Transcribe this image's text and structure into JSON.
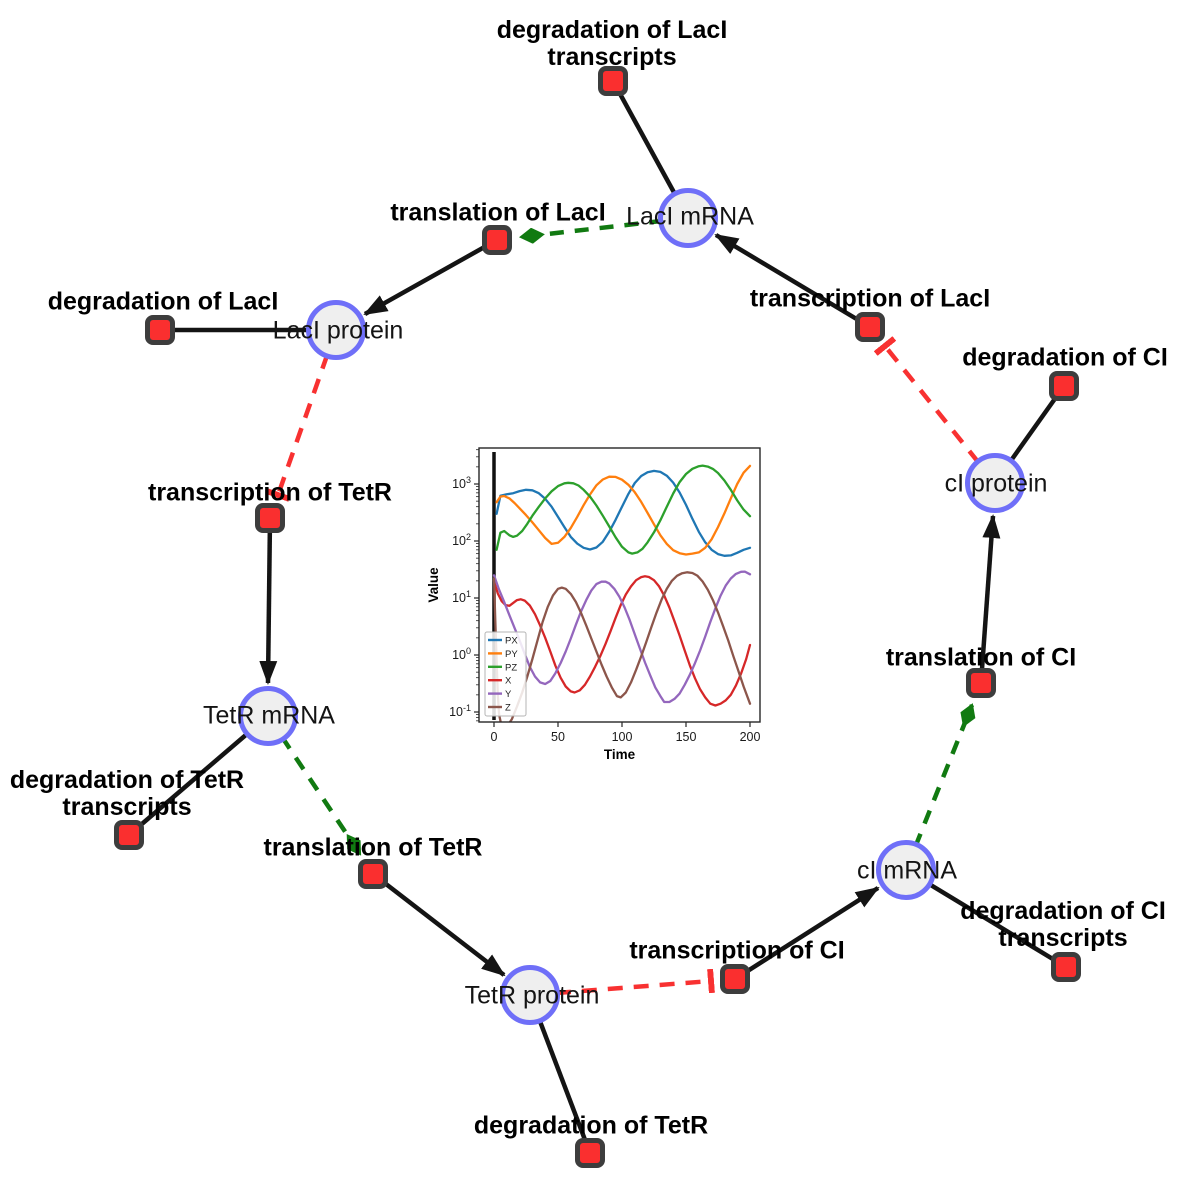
{
  "diagram": {
    "species": [
      {
        "label": "LacI mRNA"
      },
      {
        "label": "LacI protein"
      },
      {
        "label": "TetR mRNA"
      },
      {
        "label": "TetR protein"
      },
      {
        "label": "cI mRNA"
      },
      {
        "label": "cI protein"
      }
    ],
    "reactions": [
      {
        "label": "degradation of LacI transcripts"
      },
      {
        "label": "translation of LacI"
      },
      {
        "label": "degradation of LacI"
      },
      {
        "label": "transcription of LacI"
      },
      {
        "label": "degradation of CI"
      },
      {
        "label": "transcription of TetR"
      },
      {
        "label": "degradation of TetR transcripts"
      },
      {
        "label": "translation of TetR"
      },
      {
        "label": "transcription of CI"
      },
      {
        "label": "degradation of CI transcripts"
      },
      {
        "label": "translation of CI"
      },
      {
        "label": "degradation of TetR"
      }
    ],
    "colors": {
      "species_fill": "#efefef",
      "species_stroke": "#6f6ff8",
      "reaction_fill": "#fa2f2f",
      "reaction_stroke": "#3d3d3d",
      "edge_black": "#141414",
      "edge_activation_green": "#117a11",
      "edge_inhibition_red": "#f83131"
    }
  },
  "chart_data": {
    "type": "line",
    "xlabel": "Time",
    "ylabel": "Value",
    "xlim": [
      -11,
      208
    ],
    "ylim_log10": [
      -1.17,
      3.68
    ],
    "xticks": [
      0,
      50,
      100,
      150,
      200
    ],
    "ytick_exponents": [
      3,
      2,
      1,
      0,
      -1
    ],
    "grid": false,
    "legend_position": "lower left",
    "annotations": {
      "vertical_line_x": 0
    },
    "series": [
      {
        "name": "PX",
        "color": "#1f77b4",
        "points": [
          [
            2,
            300
          ],
          [
            5,
            620
          ],
          [
            10,
            660
          ],
          [
            15,
            690
          ],
          [
            20,
            750
          ],
          [
            25,
            790
          ],
          [
            30,
            775
          ],
          [
            35,
            690
          ],
          [
            40,
            550
          ],
          [
            45,
            400
          ],
          [
            50,
            265
          ],
          [
            55,
            175
          ],
          [
            60,
            118
          ],
          [
            65,
            90
          ],
          [
            70,
            76
          ],
          [
            75,
            71
          ],
          [
            80,
            77
          ],
          [
            85,
            97
          ],
          [
            90,
            145
          ],
          [
            95,
            235
          ],
          [
            100,
            400
          ],
          [
            105,
            670
          ],
          [
            110,
            1040
          ],
          [
            115,
            1380
          ],
          [
            120,
            1610
          ],
          [
            125,
            1700
          ],
          [
            130,
            1630
          ],
          [
            135,
            1400
          ],
          [
            140,
            1060
          ],
          [
            145,
            710
          ],
          [
            150,
            430
          ],
          [
            155,
            245
          ],
          [
            160,
            145
          ],
          [
            165,
            95
          ],
          [
            170,
            70
          ],
          [
            175,
            59
          ],
          [
            180,
            55
          ],
          [
            185,
            56
          ],
          [
            190,
            62
          ],
          [
            195,
            70
          ],
          [
            200,
            76
          ]
        ]
      },
      {
        "name": "PY",
        "color": "#ff7f0e",
        "points": [
          [
            2,
            480
          ],
          [
            5,
            600
          ],
          [
            8,
            615
          ],
          [
            12,
            560
          ],
          [
            16,
            465
          ],
          [
            20,
            375
          ],
          [
            25,
            285
          ],
          [
            30,
            212
          ],
          [
            35,
            155
          ],
          [
            40,
            113
          ],
          [
            45,
            89
          ],
          [
            50,
            93
          ],
          [
            55,
            118
          ],
          [
            60,
            170
          ],
          [
            65,
            265
          ],
          [
            70,
            425
          ],
          [
            75,
            655
          ],
          [
            80,
            950
          ],
          [
            85,
            1200
          ],
          [
            90,
            1345
          ],
          [
            95,
            1330
          ],
          [
            100,
            1190
          ],
          [
            105,
            970
          ],
          [
            110,
            715
          ],
          [
            115,
            485
          ],
          [
            120,
            310
          ],
          [
            125,
            196
          ],
          [
            130,
            126
          ],
          [
            135,
            89
          ],
          [
            140,
            69
          ],
          [
            145,
            61
          ],
          [
            150,
            58
          ],
          [
            155,
            60
          ],
          [
            160,
            63
          ],
          [
            165,
            76
          ],
          [
            170,
            107
          ],
          [
            175,
            175
          ],
          [
            180,
            305
          ],
          [
            185,
            560
          ],
          [
            190,
            1000
          ],
          [
            195,
            1580
          ],
          [
            200,
            2080
          ]
        ]
      },
      {
        "name": "PZ",
        "color": "#2ca02c",
        "points": [
          [
            2,
            70
          ],
          [
            5,
            140
          ],
          [
            8,
            150
          ],
          [
            12,
            126
          ],
          [
            15,
            118
          ],
          [
            18,
            124
          ],
          [
            22,
            150
          ],
          [
            26,
            200
          ],
          [
            30,
            278
          ],
          [
            35,
            398
          ],
          [
            40,
            560
          ],
          [
            45,
            745
          ],
          [
            50,
            920
          ],
          [
            55,
            1030
          ],
          [
            58,
            1050
          ],
          [
            62,
            1030
          ],
          [
            66,
            940
          ],
          [
            70,
            790
          ],
          [
            75,
            600
          ],
          [
            80,
            420
          ],
          [
            85,
            278
          ],
          [
            90,
            180
          ],
          [
            95,
            116
          ],
          [
            100,
            79
          ],
          [
            105,
            63
          ],
          [
            108,
            60
          ],
          [
            112,
            63
          ],
          [
            116,
            73
          ],
          [
            120,
            95
          ],
          [
            125,
            142
          ],
          [
            130,
            232
          ],
          [
            135,
            400
          ],
          [
            140,
            680
          ],
          [
            145,
            1080
          ],
          [
            150,
            1500
          ],
          [
            155,
            1850
          ],
          [
            160,
            2050
          ],
          [
            163,
            2100
          ],
          [
            167,
            2020
          ],
          [
            171,
            1840
          ],
          [
            175,
            1560
          ],
          [
            180,
            1150
          ],
          [
            185,
            790
          ],
          [
            190,
            515
          ],
          [
            195,
            355
          ],
          [
            200,
            272
          ]
        ]
      },
      {
        "name": "X",
        "color": "#d62728",
        "points": [
          [
            0,
            20
          ],
          [
            3,
            12
          ],
          [
            6,
            8.8
          ],
          [
            9,
            7.5
          ],
          [
            12,
            7.3
          ],
          [
            15,
            8.2
          ],
          [
            18,
            9.2
          ],
          [
            21,
            9.5
          ],
          [
            24,
            9.0
          ],
          [
            28,
            7.4
          ],
          [
            32,
            5.2
          ],
          [
            36,
            3.3
          ],
          [
            40,
            2.0
          ],
          [
            44,
            1.15
          ],
          [
            48,
            0.65
          ],
          [
            52,
            0.4
          ],
          [
            56,
            0.28
          ],
          [
            60,
            0.23
          ],
          [
            63,
            0.22
          ],
          [
            67,
            0.24
          ],
          [
            71,
            0.3
          ],
          [
            75,
            0.42
          ],
          [
            79,
            0.62
          ],
          [
            83,
            0.95
          ],
          [
            87,
            1.55
          ],
          [
            91,
            2.6
          ],
          [
            95,
            4.5
          ],
          [
            99,
            7.5
          ],
          [
            103,
            11.5
          ],
          [
            107,
            16
          ],
          [
            111,
            20.5
          ],
          [
            115,
            23.3
          ],
          [
            118,
            24
          ],
          [
            121,
            23.4
          ],
          [
            125,
            20.5
          ],
          [
            129,
            16
          ],
          [
            133,
            11
          ],
          [
            137,
            6.8
          ],
          [
            141,
            3.9
          ],
          [
            145,
            2.2
          ],
          [
            149,
            1.2
          ],
          [
            153,
            0.66
          ],
          [
            157,
            0.39
          ],
          [
            161,
            0.25
          ],
          [
            165,
            0.18
          ],
          [
            169,
            0.14
          ],
          [
            173,
            0.13
          ],
          [
            177,
            0.14
          ],
          [
            181,
            0.16
          ],
          [
            185,
            0.2
          ],
          [
            189,
            0.29
          ],
          [
            193,
            0.47
          ],
          [
            197,
            0.85
          ],
          [
            200,
            1.5
          ]
        ]
      },
      {
        "name": "Y",
        "color": "#9467bd",
        "points": [
          [
            0,
            25
          ],
          [
            4,
            14
          ],
          [
            8,
            8.5
          ],
          [
            12,
            5.0
          ],
          [
            16,
            3.0
          ],
          [
            20,
            1.8
          ],
          [
            24,
            1.05
          ],
          [
            28,
            0.62
          ],
          [
            32,
            0.42
          ],
          [
            36,
            0.33
          ],
          [
            40,
            0.31
          ],
          [
            44,
            0.35
          ],
          [
            48,
            0.48
          ],
          [
            52,
            0.72
          ],
          [
            56,
            1.15
          ],
          [
            60,
            1.95
          ],
          [
            64,
            3.4
          ],
          [
            68,
            5.8
          ],
          [
            72,
            9.2
          ],
          [
            76,
            13.5
          ],
          [
            80,
            17.5
          ],
          [
            84,
            19.3
          ],
          [
            87,
            19.4
          ],
          [
            90,
            18
          ],
          [
            94,
            14.5
          ],
          [
            98,
            10.5
          ],
          [
            102,
            6.8
          ],
          [
            106,
            4.1
          ],
          [
            110,
            2.3
          ],
          [
            114,
            1.3
          ],
          [
            118,
            0.74
          ],
          [
            122,
            0.44
          ],
          [
            126,
            0.27
          ],
          [
            130,
            0.19
          ],
          [
            133,
            0.15
          ],
          [
            137,
            0.15
          ],
          [
            141,
            0.17
          ],
          [
            145,
            0.21
          ],
          [
            149,
            0.3
          ],
          [
            153,
            0.45
          ],
          [
            157,
            0.72
          ],
          [
            161,
            1.2
          ],
          [
            165,
            2.1
          ],
          [
            169,
            3.8
          ],
          [
            173,
            6.6
          ],
          [
            177,
            11
          ],
          [
            181,
            16.5
          ],
          [
            185,
            22
          ],
          [
            189,
            26.5
          ],
          [
            193,
            28.8
          ],
          [
            196,
            29
          ],
          [
            200,
            26
          ]
        ]
      },
      {
        "name": "Z",
        "color": "#8c564b",
        "points": [
          [
            0,
            22
          ],
          [
            1,
            4
          ],
          [
            2,
            0.8
          ],
          [
            3,
            0.2
          ],
          [
            4,
            0.09
          ],
          [
            6,
            0.055
          ],
          [
            10,
            0.055
          ],
          [
            14,
            0.075
          ],
          [
            18,
            0.125
          ],
          [
            22,
            0.22
          ],
          [
            26,
            0.42
          ],
          [
            30,
            0.85
          ],
          [
            34,
            1.8
          ],
          [
            38,
            3.8
          ],
          [
            42,
            7.0
          ],
          [
            46,
            11
          ],
          [
            50,
            14.5
          ],
          [
            53,
            15.2
          ],
          [
            56,
            14.5
          ],
          [
            60,
            11.8
          ],
          [
            64,
            8.5
          ],
          [
            68,
            5.5
          ],
          [
            72,
            3.3
          ],
          [
            76,
            1.95
          ],
          [
            80,
            1.15
          ],
          [
            84,
            0.68
          ],
          [
            88,
            0.42
          ],
          [
            92,
            0.27
          ],
          [
            96,
            0.19
          ],
          [
            99,
            0.18
          ],
          [
            103,
            0.22
          ],
          [
            107,
            0.33
          ],
          [
            111,
            0.55
          ],
          [
            115,
            0.95
          ],
          [
            119,
            1.7
          ],
          [
            123,
            3.1
          ],
          [
            127,
            5.6
          ],
          [
            131,
            9.5
          ],
          [
            135,
            14.5
          ],
          [
            139,
            20
          ],
          [
            143,
            24.5
          ],
          [
            147,
            27.2
          ],
          [
            151,
            28.2
          ],
          [
            155,
            27.5
          ],
          [
            159,
            24.5
          ],
          [
            163,
            19.5
          ],
          [
            167,
            14
          ],
          [
            171,
            9.2
          ],
          [
            175,
            5.6
          ],
          [
            179,
            3.2
          ],
          [
            183,
            1.8
          ],
          [
            187,
            0.95
          ],
          [
            191,
            0.52
          ],
          [
            195,
            0.28
          ],
          [
            200,
            0.14
          ]
        ]
      }
    ]
  }
}
